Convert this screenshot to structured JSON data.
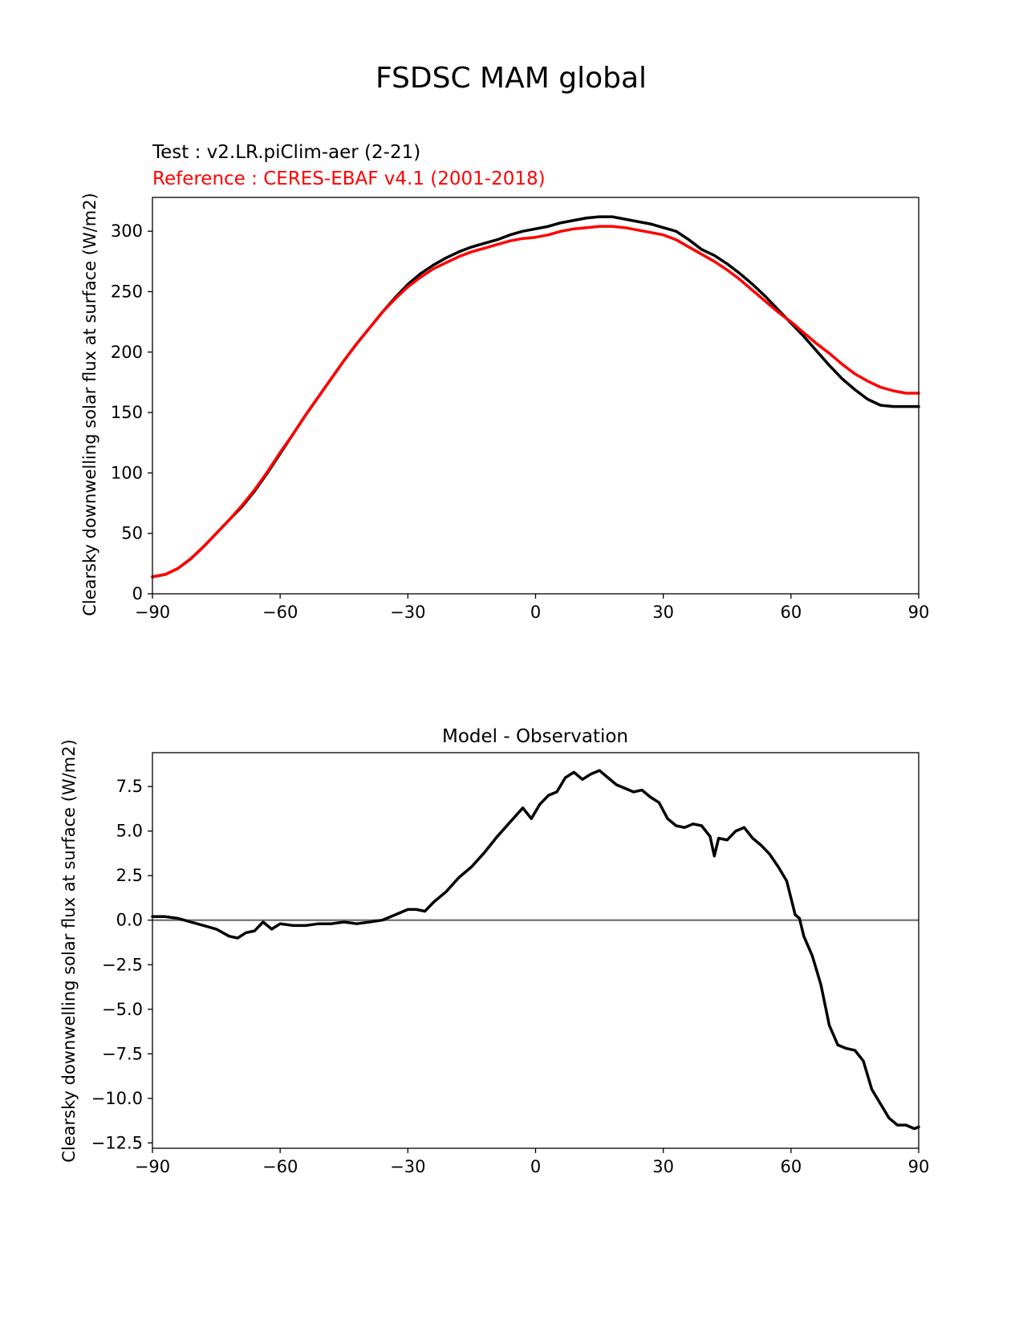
{
  "figure": {
    "title": "FSDSC MAM global"
  },
  "chart_data": [
    {
      "type": "line",
      "test_label": "Test : v2.LR.piClim-aer (2-21)",
      "reference_label": "Reference : CERES-EBAF v4.1 (2001-2018)",
      "ylabel": "Clearsky downwelling solar flux at surface (W/m2)",
      "xlabel": "",
      "xlim": [
        -90,
        90
      ],
      "ylim": [
        0,
        328
      ],
      "xticks": [
        -90,
        -60,
        -30,
        0,
        30,
        60,
        90
      ],
      "xtick_labels": [
        "−90",
        "−60",
        "−30",
        "0",
        "30",
        "60",
        "90"
      ],
      "yticks": [
        0,
        50,
        100,
        150,
        200,
        250,
        300
      ],
      "ytick_labels": [
        "0",
        "50",
        "100",
        "150",
        "200",
        "250",
        "300"
      ],
      "series": [
        {
          "role": "test",
          "color": "#000000",
          "x": [
            -90,
            -87,
            -84,
            -81,
            -78,
            -75,
            -72,
            -69,
            -66,
            -63,
            -60,
            -57,
            -54,
            -51,
            -48,
            -45,
            -42,
            -39,
            -36,
            -33,
            -30,
            -27,
            -24,
            -21,
            -18,
            -15,
            -12,
            -9,
            -6,
            -3,
            0,
            3,
            6,
            9,
            12,
            15,
            18,
            21,
            24,
            27,
            30,
            33,
            36,
            39,
            42,
            45,
            48,
            51,
            54,
            57,
            60,
            63,
            66,
            69,
            72,
            75,
            78,
            81,
            84,
            87,
            90
          ],
          "values": [
            14,
            16,
            21,
            29,
            39,
            50,
            61,
            72,
            85,
            100,
            116,
            132,
            148,
            163,
            178,
            193,
            207,
            220,
            233,
            245,
            256,
            265,
            272,
            278,
            283,
            287,
            290,
            293,
            297,
            300,
            302,
            304,
            307,
            309,
            311,
            312,
            312,
            310,
            308,
            306,
            303,
            300,
            293,
            285,
            280,
            273,
            265,
            256,
            246,
            235,
            224,
            213,
            201,
            189,
            178,
            169,
            161,
            156,
            155,
            155,
            155
          ]
        },
        {
          "role": "reference",
          "color": "#ff0000",
          "x": [
            -90,
            -87,
            -84,
            -81,
            -78,
            -75,
            -72,
            -69,
            -66,
            -63,
            -60,
            -57,
            -54,
            -51,
            -48,
            -45,
            -42,
            -39,
            -36,
            -33,
            -30,
            -27,
            -24,
            -21,
            -18,
            -15,
            -12,
            -9,
            -6,
            -3,
            0,
            3,
            6,
            9,
            12,
            15,
            18,
            21,
            24,
            27,
            30,
            33,
            36,
            39,
            42,
            45,
            48,
            51,
            54,
            57,
            60,
            63,
            66,
            69,
            72,
            75,
            78,
            81,
            84,
            87,
            90
          ],
          "values": [
            14,
            16,
            21,
            29,
            39,
            50,
            61,
            73,
            86,
            101,
            117,
            132,
            148,
            163,
            178,
            193,
            207,
            220,
            233,
            244,
            254,
            262,
            269,
            274,
            279,
            283,
            286,
            289,
            292,
            294,
            295,
            297,
            300,
            302,
            303,
            304,
            304,
            303,
            301,
            299,
            297,
            293,
            287,
            281,
            275,
            268,
            260,
            251,
            242,
            233,
            225,
            216,
            207,
            199,
            190,
            182,
            176,
            171,
            168,
            166,
            166
          ]
        }
      ]
    },
    {
      "type": "line",
      "title": "Model - Observation",
      "ylabel": "Clearsky downwelling solar flux at surface (W/m2)",
      "xlabel": "",
      "xlim": [
        -90,
        90
      ],
      "ylim": [
        -12.8,
        9.4
      ],
      "xticks": [
        -90,
        -60,
        -30,
        0,
        30,
        60,
        90
      ],
      "xtick_labels": [
        "−90",
        "−60",
        "−30",
        "0",
        "30",
        "60",
        "90"
      ],
      "yticks": [
        -12.5,
        -10.0,
        -7.5,
        -5.0,
        -2.5,
        0.0,
        2.5,
        5.0,
        7.5
      ],
      "ytick_labels": [
        "−12.5",
        "−10.0",
        "−7.5",
        "−5.0",
        "−2.5",
        "0.0",
        "2.5",
        "5.0",
        "7.5"
      ],
      "zero_line_color": "#808080",
      "series": [
        {
          "role": "difference",
          "color": "#000000",
          "x": [
            -90,
            -87,
            -84,
            -81,
            -78,
            -75,
            -72,
            -70,
            -68,
            -66,
            -64,
            -62,
            -60,
            -57,
            -54,
            -51,
            -48,
            -45,
            -42,
            -39,
            -36,
            -33,
            -30,
            -28,
            -26,
            -24,
            -21,
            -18,
            -15,
            -12,
            -9,
            -6,
            -3,
            -1,
            1,
            3,
            5,
            7,
            9,
            11,
            13,
            15,
            17,
            19,
            21,
            23,
            25,
            27,
            29,
            31,
            33,
            35,
            37,
            39,
            41,
            42,
            43,
            45,
            47,
            49,
            51,
            53,
            55,
            57,
            59,
            61,
            62,
            63,
            65,
            67,
            69,
            71,
            73,
            75,
            77,
            79,
            81,
            83,
            85,
            87,
            89,
            90
          ],
          "values": [
            0.2,
            0.2,
            0.1,
            -0.1,
            -0.3,
            -0.5,
            -0.9,
            -1.0,
            -0.7,
            -0.6,
            -0.1,
            -0.5,
            -0.2,
            -0.3,
            -0.3,
            -0.2,
            -0.2,
            -0.1,
            -0.2,
            -0.1,
            0.0,
            0.3,
            0.6,
            0.6,
            0.5,
            1.0,
            1.6,
            2.4,
            3.0,
            3.8,
            4.7,
            5.5,
            6.3,
            5.7,
            6.5,
            7.0,
            7.2,
            8.0,
            8.3,
            7.9,
            8.2,
            8.4,
            8.0,
            7.6,
            7.4,
            7.2,
            7.3,
            6.9,
            6.6,
            5.7,
            5.3,
            5.2,
            5.4,
            5.3,
            4.7,
            3.6,
            4.6,
            4.5,
            5.0,
            5.2,
            4.6,
            4.2,
            3.7,
            3.0,
            2.2,
            0.3,
            0.1,
            -0.9,
            -2.0,
            -3.6,
            -5.9,
            -7.0,
            -7.2,
            -7.3,
            -7.9,
            -9.5,
            -10.3,
            -11.1,
            -11.5,
            -11.5,
            -11.7,
            -11.6
          ]
        }
      ]
    }
  ]
}
